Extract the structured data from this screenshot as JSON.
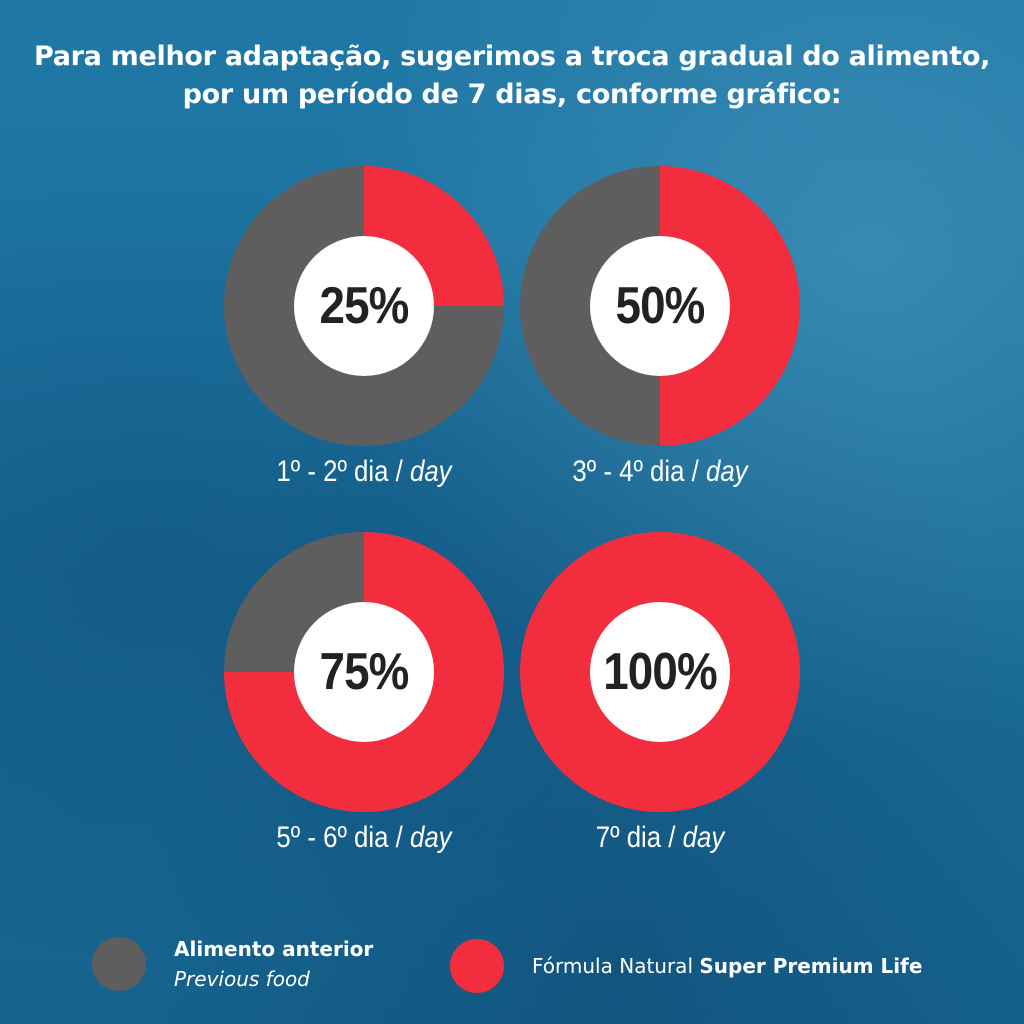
{
  "header": {
    "title_line1": "Para melhor adaptação, sugerimos a troca gradual do alimento,",
    "title_line2": "por um período de 7 dias, conforme gráfico:"
  },
  "colors": {
    "previous": "#5e5e5f",
    "new": "#f12d3e",
    "center": "#ffffff"
  },
  "chart_data": {
    "type": "pie",
    "title": "Para melhor adaptação, sugerimos a troca gradual do alimento, por um período de 7 dias, conforme gráfico:",
    "charts": [
      {
        "value": 25,
        "label_text": "25%",
        "period": "1º - 2º dia",
        "period_sep": " / ",
        "period_en": "day",
        "slices": [
          {
            "name": "Alimento anterior",
            "value": 75
          },
          {
            "name": "Fórmula Natural Super Premium Life",
            "value": 25
          }
        ]
      },
      {
        "value": 50,
        "label_text": "50%",
        "period": "3º - 4º dia",
        "period_sep": " / ",
        "period_en": "day",
        "slices": [
          {
            "name": "Alimento anterior",
            "value": 50
          },
          {
            "name": "Fórmula Natural Super Premium Life",
            "value": 50
          }
        ]
      },
      {
        "value": 75,
        "label_text": "75%",
        "period": "5º - 6º dia",
        "period_sep": " / ",
        "period_en": "day",
        "slices": [
          {
            "name": "Alimento anterior",
            "value": 25
          },
          {
            "name": "Fórmula Natural Super Premium Life",
            "value": 75
          }
        ]
      },
      {
        "value": 100,
        "label_text": "100%",
        "period": "7º dia",
        "period_sep": " / ",
        "period_en": "day",
        "slices": [
          {
            "name": "Alimento anterior",
            "value": 0
          },
          {
            "name": "Fórmula Natural Super Premium Life",
            "value": 100
          }
        ]
      }
    ],
    "legend": [
      {
        "label": "Alimento anterior",
        "sublabel": "Previous food"
      },
      {
        "label_prefix": "Fórmula Natural ",
        "label_bold": "Super Premium Life"
      }
    ],
    "legend_position": "bottom"
  }
}
